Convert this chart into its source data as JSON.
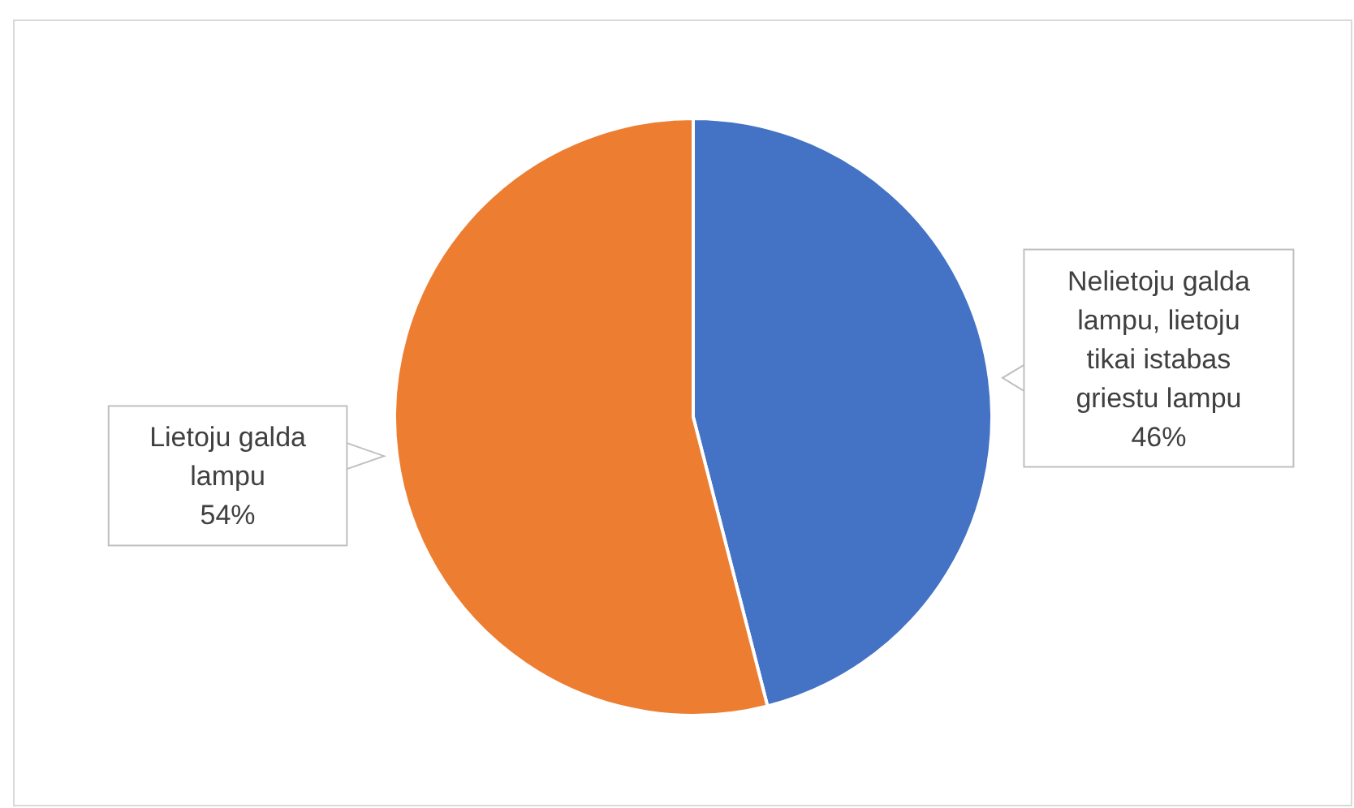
{
  "chart_data": {
    "type": "pie",
    "categories": [
      "Nelietoju galda lampu, lietoju tikai istabas griestu lampu",
      "Lietoju galda lampu"
    ],
    "values": [
      46,
      54
    ],
    "value_labels": [
      "46%",
      "54%"
    ],
    "colors": [
      "#4472c4",
      "#ed7d31"
    ]
  }
}
